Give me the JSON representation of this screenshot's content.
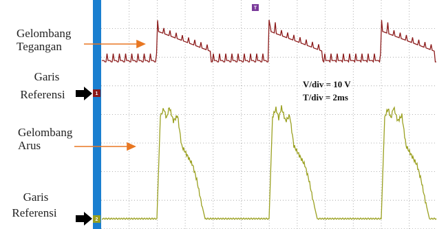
{
  "labels": {
    "voltage_wave": [
      "Gelombang",
      "Tegangan"
    ],
    "ref1": [
      "Garis",
      "Referensi"
    ],
    "current_wave": [
      "Gelombang",
      "Arus"
    ],
    "ref2": [
      "Garis",
      "Referensi"
    ]
  },
  "scale": {
    "vdiv": "V/div = 10 V",
    "tdiv": "T/div = 2ms"
  },
  "markers": {
    "trigger": "T",
    "ch1": "1",
    "ch2": "2"
  }
}
